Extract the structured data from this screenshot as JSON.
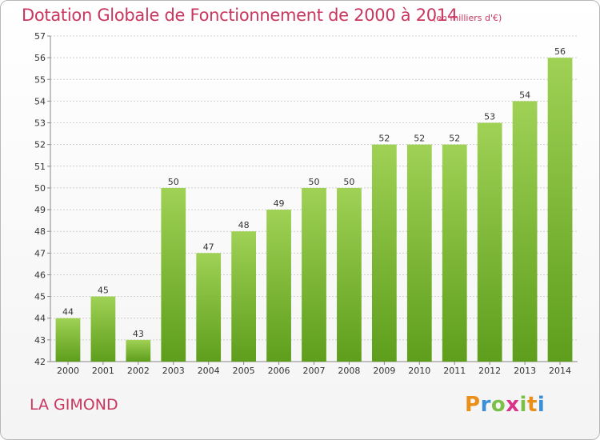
{
  "header": {
    "title": "Dotation Globale de Fonctionnement de 2000 à 2014",
    "subtitle": "(en milliers d'€)"
  },
  "footer": {
    "commune": "LA GIMOND",
    "logo": "Proxiti"
  },
  "colors": {
    "title": "#c8375f",
    "bar_top": "#9fd155",
    "bar_bottom": "#5e9e1c",
    "grid": "#cfcfcf"
  },
  "chart_data": {
    "type": "bar",
    "title": "Dotation Globale de Fonctionnement de 2000 à 2014",
    "subtitle": "(en milliers d'€)",
    "xlabel": "",
    "ylabel": "",
    "categories": [
      "2000",
      "2001",
      "2002",
      "2003",
      "2004",
      "2005",
      "2006",
      "2007",
      "2008",
      "2009",
      "2010",
      "2011",
      "2012",
      "2013",
      "2014"
    ],
    "values": [
      44,
      45,
      43,
      50,
      47,
      48,
      49,
      50,
      50,
      52,
      52,
      52,
      53,
      54,
      56
    ],
    "ylim": [
      42,
      57
    ],
    "yticks": [
      42,
      43,
      44,
      45,
      46,
      47,
      48,
      49,
      50,
      51,
      52,
      53,
      54,
      55,
      56,
      57
    ],
    "grid": true,
    "data_labels": true
  }
}
